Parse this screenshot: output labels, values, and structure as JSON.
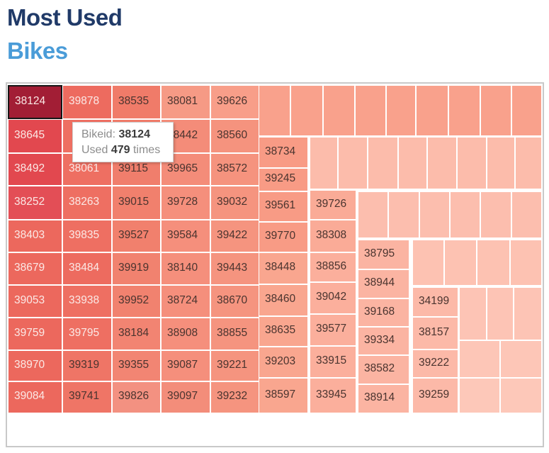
{
  "header": {
    "title_line1": "Most Used",
    "title_line2": "Bikes",
    "color_line1": "#203A68",
    "color_line2": "#4A9CD8"
  },
  "tooltip": {
    "label1": "Bikeid:",
    "value1": "38124",
    "label2": "Used",
    "value2": "479",
    "label3": "times"
  },
  "chart_data": {
    "type": "treemap",
    "title": "Most Used Bikes",
    "tooltip": {
      "bikeid": "38124",
      "used_times": 479
    },
    "selected_id": "38124",
    "text_colors": {
      "light": "#FBE9E6",
      "dark": "#4A342F"
    },
    "cell_fields": [
      "label",
      "x",
      "y",
      "w",
      "h",
      "bg",
      "fg"
    ],
    "cells": [
      [
        "38124",
        11,
        120,
        77,
        48,
        "#A21E35",
        "L"
      ],
      [
        "38645",
        11,
        168,
        77,
        48,
        "#E2484F",
        "L"
      ],
      [
        "38492",
        11,
        216,
        77,
        46,
        "#E2484F",
        "L"
      ],
      [
        "38252",
        11,
        262,
        77,
        48,
        "#E34E56",
        "L"
      ],
      [
        "38403",
        11,
        310,
        77,
        46,
        "#EC685D",
        "L"
      ],
      [
        "38679",
        11,
        356,
        77,
        46,
        "#EC685D",
        "L"
      ],
      [
        "39053",
        11,
        402,
        77,
        46,
        "#EC685D",
        "L"
      ],
      [
        "39759",
        11,
        448,
        77,
        46,
        "#EC685D",
        "L"
      ],
      [
        "38970",
        11,
        494,
        77,
        44,
        "#EC685D",
        "L"
      ],
      [
        "39084",
        11,
        538,
        77,
        45,
        "#EC685D",
        "L"
      ],
      [
        "39878",
        88,
        120,
        70,
        48,
        "#ED6B5F",
        "L"
      ],
      [
        "",
        88,
        168,
        70,
        48,
        "#EE6F62",
        "L"
      ],
      [
        "38061",
        88,
        216,
        70,
        46,
        "#EE6F62",
        "L"
      ],
      [
        "38263",
        88,
        262,
        70,
        48,
        "#EE6F62",
        "L"
      ],
      [
        "39835",
        88,
        310,
        70,
        46,
        "#EE6F62",
        "L"
      ],
      [
        "38484",
        88,
        356,
        70,
        46,
        "#ED6B5F",
        "L"
      ],
      [
        "33938",
        88,
        402,
        70,
        46,
        "#EE6F62",
        "L"
      ],
      [
        "39795",
        88,
        448,
        70,
        46,
        "#EE6F62",
        "L"
      ],
      [
        "39319",
        88,
        494,
        70,
        44,
        "#EF7566",
        "D"
      ],
      [
        "39741",
        88,
        538,
        70,
        45,
        "#EF7566",
        "D"
      ],
      [
        "38535",
        158,
        120,
        69,
        48,
        "#F07B69",
        "D"
      ],
      [
        "",
        158,
        168,
        69,
        48,
        "#F07B69",
        "D"
      ],
      [
        "39115",
        158,
        216,
        69,
        46,
        "#F07E6C",
        "D"
      ],
      [
        "39015",
        158,
        262,
        69,
        48,
        "#F1806D",
        "D"
      ],
      [
        "39527",
        158,
        310,
        69,
        46,
        "#F1806D",
        "D"
      ],
      [
        "39919",
        158,
        356,
        69,
        46,
        "#F1826F",
        "D"
      ],
      [
        "39952",
        158,
        402,
        69,
        46,
        "#F1826F",
        "D"
      ],
      [
        "38184",
        158,
        448,
        69,
        46,
        "#F28472",
        "D"
      ],
      [
        "39355",
        158,
        494,
        69,
        44,
        "#F28573",
        "D"
      ],
      [
        "39826",
        158,
        538,
        69,
        45,
        "#F39181",
        "D"
      ],
      [
        "38081",
        227,
        120,
        70,
        48,
        "#F69A85",
        "D"
      ],
      [
        "38442",
        227,
        168,
        70,
        48,
        "#F48C79",
        "D"
      ],
      [
        "39965",
        227,
        216,
        70,
        46,
        "#F48C79",
        "D"
      ],
      [
        "39728",
        227,
        262,
        70,
        48,
        "#F58F7C",
        "D"
      ],
      [
        "39584",
        227,
        310,
        70,
        46,
        "#F58F7C",
        "D"
      ],
      [
        "38140",
        227,
        356,
        70,
        46,
        "#F58F7C",
        "D"
      ],
      [
        "38724",
        227,
        402,
        70,
        46,
        "#F58F7C",
        "D"
      ],
      [
        "38908",
        227,
        448,
        70,
        46,
        "#F58F7C",
        "D"
      ],
      [
        "39087",
        227,
        494,
        70,
        44,
        "#F58F7C",
        "D"
      ],
      [
        "39097",
        227,
        538,
        70,
        45,
        "#F38D7A",
        "D"
      ],
      [
        "39626",
        297,
        120,
        69,
        48,
        "#F89E89",
        "D"
      ],
      [
        "38560",
        297,
        168,
        69,
        48,
        "#F5937E",
        "D"
      ],
      [
        "38572",
        297,
        216,
        69,
        46,
        "#F5937E",
        "D"
      ],
      [
        "39032",
        297,
        262,
        69,
        48,
        "#F5947F",
        "D"
      ],
      [
        "39422",
        297,
        310,
        69,
        46,
        "#F5947F",
        "D"
      ],
      [
        "39443",
        297,
        356,
        69,
        46,
        "#F5947F",
        "D"
      ],
      [
        "38670",
        297,
        402,
        69,
        46,
        "#F5947F",
        "D"
      ],
      [
        "38855",
        297,
        448,
        69,
        46,
        "#F5947F",
        "D"
      ],
      [
        "39221",
        297,
        494,
        69,
        44,
        "#F5947F",
        "D"
      ],
      [
        "39232",
        297,
        538,
        69,
        45,
        "#F5947F",
        "D"
      ],
      [
        "",
        365,
        120,
        45,
        72,
        "#F9A18C",
        "D"
      ],
      [
        "",
        410,
        120,
        46,
        72,
        "#F9A18C",
        "D"
      ],
      [
        "",
        456,
        120,
        45,
        72,
        "#F9A18C",
        "D"
      ],
      [
        "",
        501,
        120,
        44,
        72,
        "#F9A18C",
        "D"
      ],
      [
        "",
        545,
        120,
        42,
        72,
        "#F9A18C",
        "D"
      ],
      [
        "",
        587,
        120,
        46,
        72,
        "#F9A18C",
        "D"
      ],
      [
        "",
        633,
        120,
        45,
        72,
        "#F9A18C",
        "D"
      ],
      [
        "",
        678,
        120,
        44,
        72,
        "#F9A18C",
        "D"
      ],
      [
        "",
        722,
        120,
        43,
        72,
        "#F9A18C",
        "D"
      ],
      [
        "38734",
        365,
        193,
        70,
        44,
        "#F89B85",
        "D"
      ],
      [
        "39245",
        365,
        237,
        70,
        33,
        "#F89B85",
        "D"
      ],
      [
        "39561",
        365,
        270,
        70,
        43,
        "#F89B85",
        "D"
      ],
      [
        "39770",
        365,
        313,
        70,
        43,
        "#F89B85",
        "D"
      ],
      [
        "38448",
        365,
        356,
        70,
        45,
        "#F9A68F",
        "D"
      ],
      [
        "38460",
        365,
        401,
        70,
        45,
        "#F9A68F",
        "D"
      ],
      [
        "38635",
        365,
        446,
        70,
        43,
        "#F9A68F",
        "D"
      ],
      [
        "39203",
        365,
        489,
        70,
        44,
        "#F9A68F",
        "D"
      ],
      [
        "38597",
        365,
        533,
        70,
        50,
        "#F9A68F",
        "D"
      ],
      [
        "",
        437,
        193,
        40,
        74,
        "#FCBCAB",
        "D"
      ],
      [
        "",
        477,
        193,
        42,
        74,
        "#FCBCAB",
        "D"
      ],
      [
        "",
        519,
        193,
        43,
        74,
        "#FCBCAB",
        "D"
      ],
      [
        "",
        562,
        193,
        41,
        74,
        "#FCBCAB",
        "D"
      ],
      [
        "",
        603,
        193,
        42,
        74,
        "#FCBCAB",
        "D"
      ],
      [
        "",
        645,
        193,
        42,
        74,
        "#FCBCAB",
        "D"
      ],
      [
        "",
        687,
        193,
        40,
        74,
        "#FCBCAB",
        "D"
      ],
      [
        "",
        727,
        193,
        38,
        74,
        "#FCBCAB",
        "D"
      ],
      [
        "39726",
        437,
        268,
        66,
        42,
        "#FAAB97",
        "D"
      ],
      [
        "38308",
        437,
        310,
        66,
        46,
        "#FAAB97",
        "D"
      ],
      [
        "38856",
        437,
        356,
        66,
        42,
        "#FBAF9C",
        "D"
      ],
      [
        "39042",
        437,
        398,
        66,
        45,
        "#FBAF9C",
        "D"
      ],
      [
        "39577",
        437,
        443,
        66,
        45,
        "#FBAF9C",
        "D"
      ],
      [
        "33915",
        437,
        488,
        66,
        45,
        "#FBAF9C",
        "D"
      ],
      [
        "33945",
        437,
        533,
        66,
        50,
        "#FBAF9C",
        "D"
      ],
      [
        "",
        505,
        270,
        43,
        66,
        "#FCBEAE",
        "D"
      ],
      [
        "",
        548,
        270,
        44,
        66,
        "#FCBEAE",
        "D"
      ],
      [
        "",
        592,
        270,
        43,
        66,
        "#FCBEAE",
        "D"
      ],
      [
        "",
        635,
        270,
        43,
        66,
        "#FCBEAE",
        "D"
      ],
      [
        "",
        678,
        270,
        44,
        66,
        "#FCBEAE",
        "D"
      ],
      [
        "",
        722,
        270,
        43,
        66,
        "#FCBEAE",
        "D"
      ],
      [
        "38795",
        505,
        338,
        73,
        42,
        "#FBB4A2",
        "D"
      ],
      [
        "38944",
        505,
        380,
        73,
        41,
        "#FBB4A2",
        "D"
      ],
      [
        "39168",
        505,
        421,
        73,
        40,
        "#FBB4A2",
        "D"
      ],
      [
        "39334",
        505,
        461,
        73,
        40,
        "#FBB4A2",
        "D"
      ],
      [
        "38582",
        505,
        501,
        73,
        41,
        "#FBB4A2",
        "D"
      ],
      [
        "38914",
        505,
        542,
        73,
        41,
        "#FBB4A2",
        "D"
      ],
      [
        "",
        582,
        338,
        45,
        65,
        "#FDC2B2",
        "D"
      ],
      [
        "",
        627,
        338,
        46,
        65,
        "#FDC2B2",
        "D"
      ],
      [
        "",
        673,
        338,
        47,
        65,
        "#FDC2B2",
        "D"
      ],
      [
        "",
        720,
        338,
        45,
        65,
        "#FDC2B2",
        "D"
      ],
      [
        "34199",
        582,
        405,
        65,
        42,
        "#FCB9A8",
        "D"
      ],
      [
        "38157",
        582,
        447,
        65,
        46,
        "#FCB9A8",
        "D"
      ],
      [
        "39222",
        582,
        493,
        65,
        40,
        "#FCB9A8",
        "D"
      ],
      [
        "39259",
        582,
        533,
        65,
        50,
        "#FCB9A8",
        "D"
      ],
      [
        "",
        648,
        405,
        39,
        75,
        "#FDC4B5",
        "D"
      ],
      [
        "",
        687,
        405,
        38,
        75,
        "#FDC4B5",
        "D"
      ],
      [
        "",
        725,
        405,
        40,
        75,
        "#FDC4B5",
        "D"
      ],
      [
        "",
        648,
        480,
        58,
        53,
        "#FDC6B7",
        "D"
      ],
      [
        "",
        706,
        480,
        59,
        53,
        "#FDC6B7",
        "D"
      ],
      [
        "",
        648,
        533,
        58,
        50,
        "#FDC8B9",
        "D"
      ],
      [
        "",
        706,
        533,
        59,
        50,
        "#FDC8B9",
        "D"
      ]
    ]
  }
}
